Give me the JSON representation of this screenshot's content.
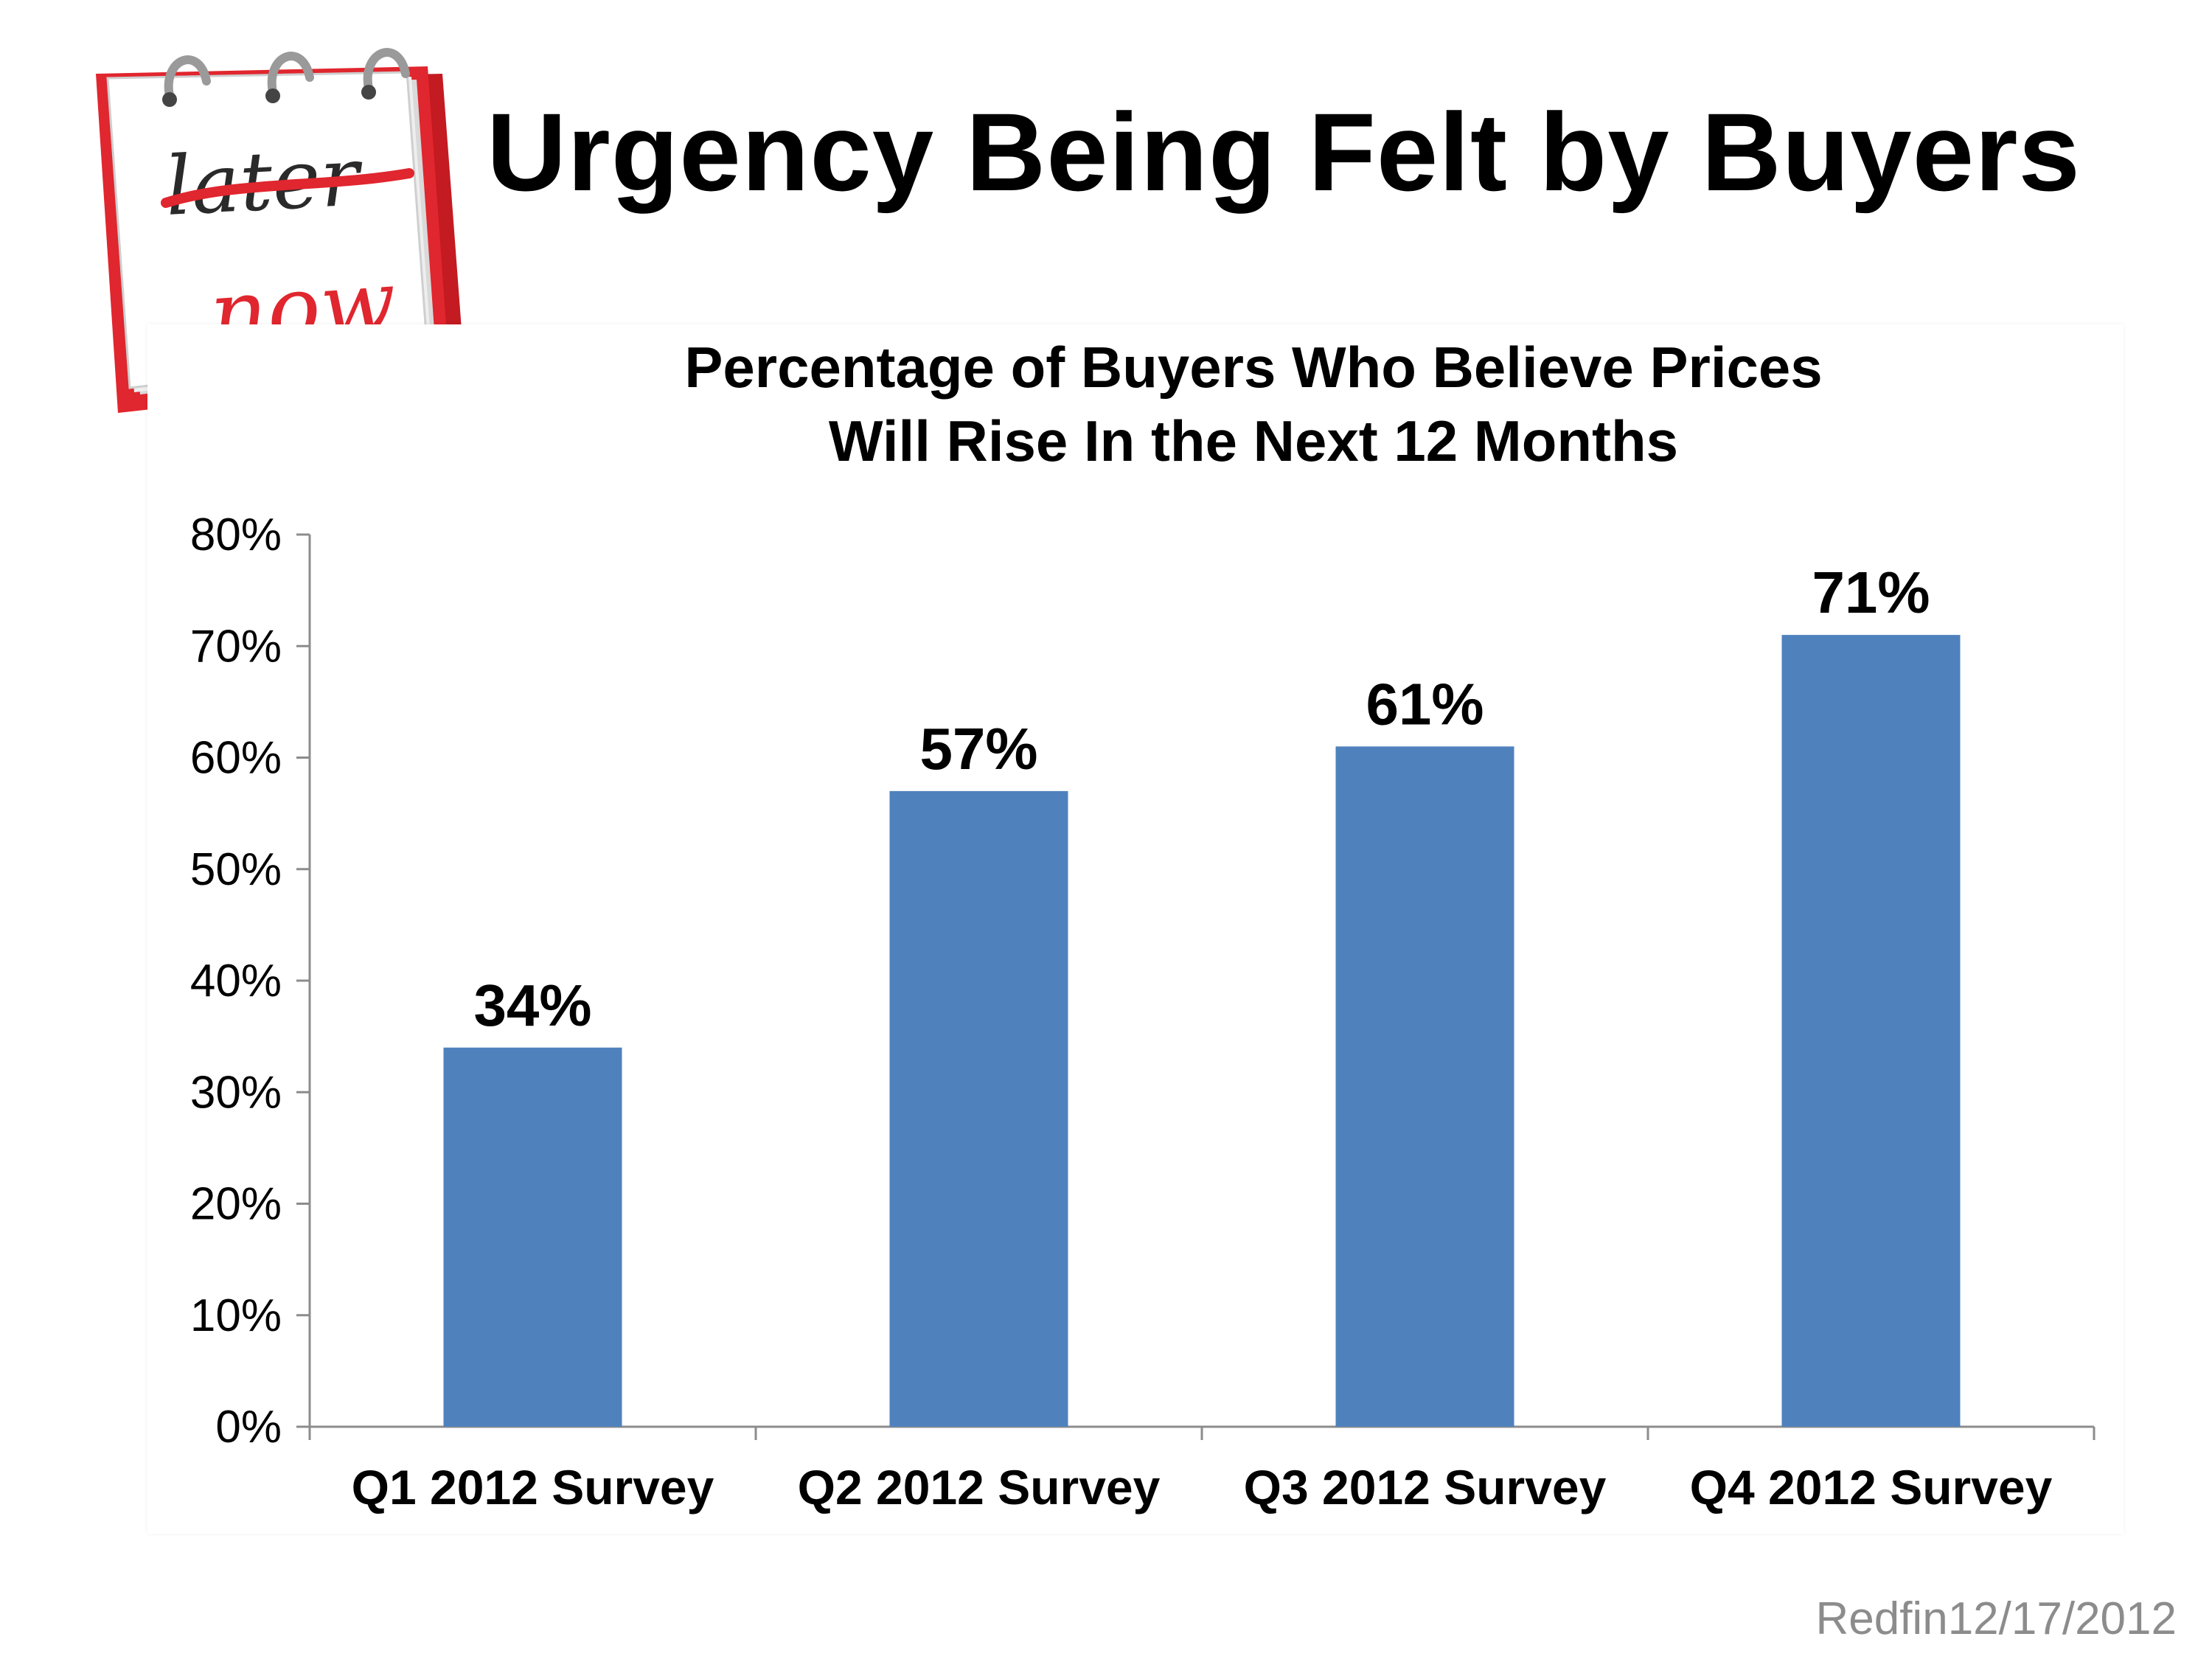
{
  "slide": {
    "title": "Urgency Being Felt by Buyers",
    "source": "Redfin12/17/2012"
  },
  "calendar_graphic": {
    "icon": "desk-calendar-icon",
    "struck_word": "later",
    "highlight_word": "now",
    "accent_color": "#d9202a"
  },
  "chart_data": {
    "type": "bar",
    "title_lines": [
      "Percentage of Buyers Who Believe Prices",
      "Will Rise In the Next 12 Months"
    ],
    "categories": [
      "Q1 2012 Survey",
      "Q2 2012 Survey",
      "Q3 2012 Survey",
      "Q4 2012 Survey"
    ],
    "values": [
      34,
      57,
      61,
      71
    ],
    "data_labels": [
      "34%",
      "57%",
      "61%",
      "71%"
    ],
    "y_ticks": [
      "0%",
      "10%",
      "20%",
      "30%",
      "40%",
      "50%",
      "60%",
      "70%",
      "80%"
    ],
    "ylim": [
      0,
      80
    ],
    "grid": false,
    "legend": "none",
    "bar_color": "#4f81bd"
  }
}
